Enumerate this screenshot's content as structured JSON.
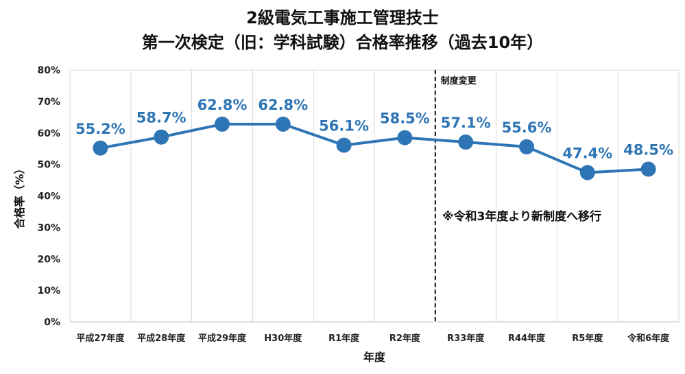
{
  "chart_data": {
    "type": "line",
    "title": "2級電気工事施工管理技士",
    "subtitle": "第一次検定（旧：学科試験）合格率推移（過去10年）",
    "xlabel": "年度",
    "ylabel": "合格率（%）",
    "categories": [
      "平成27年度",
      "平成28年度",
      "平成29年度",
      "H30年度",
      "R1年度",
      "R2年度",
      "R33年度",
      "R44年度",
      "R5年度",
      "令和6年度"
    ],
    "series": [
      {
        "values": [
          55.2,
          58.7,
          62.8,
          62.8,
          56.1,
          58.5,
          57.1,
          55.6,
          47.4,
          48.5
        ]
      }
    ],
    "data_labels": [
      "55.2%",
      "58.7%",
      "62.8%",
      "62.8%",
      "56.1%",
      "58.5%",
      "57.1%",
      "55.6%",
      "47.4%",
      "48.5%"
    ],
    "yticks": [
      "0%",
      "10%",
      "20%",
      "30%",
      "40%",
      "50%",
      "60%",
      "70%",
      "80%"
    ],
    "ylim": [
      0,
      80
    ],
    "grid": "vertical",
    "color": "#2e75b6",
    "divider_label": "制度変更",
    "note": "※令和3年度より新制度へ移行"
  }
}
